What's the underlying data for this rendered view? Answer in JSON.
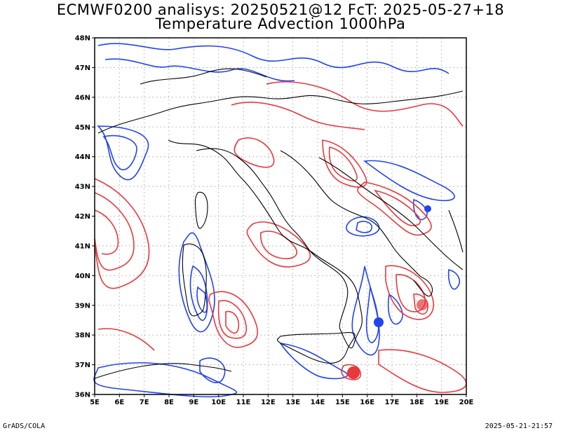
{
  "header": {
    "title_line1": "ECMWF0200 analisys: 20250521@12 FcT: 2025-05-27+18",
    "title_line2": "Temperature Advection 1000hPa"
  },
  "axes": {
    "lat_labels": [
      "48N",
      "47N",
      "46N",
      "45N",
      "44N",
      "43N",
      "42N",
      "41N",
      "40N",
      "39N",
      "38N",
      "37N",
      "36N"
    ],
    "lon_labels": [
      "5E",
      "6E",
      "7E",
      "8E",
      "9E",
      "10E",
      "11E",
      "12E",
      "13E",
      "14E",
      "15E",
      "16E",
      "17E",
      "18E",
      "19E",
      "20E"
    ]
  },
  "colors": {
    "warm_advection": "#e8383c",
    "cold_advection": "#2244ee",
    "coastline": "#000000",
    "grid": "#999999"
  },
  "footer": {
    "left": "GrADS/COLA",
    "right": "2025-05-21-21:57"
  }
}
